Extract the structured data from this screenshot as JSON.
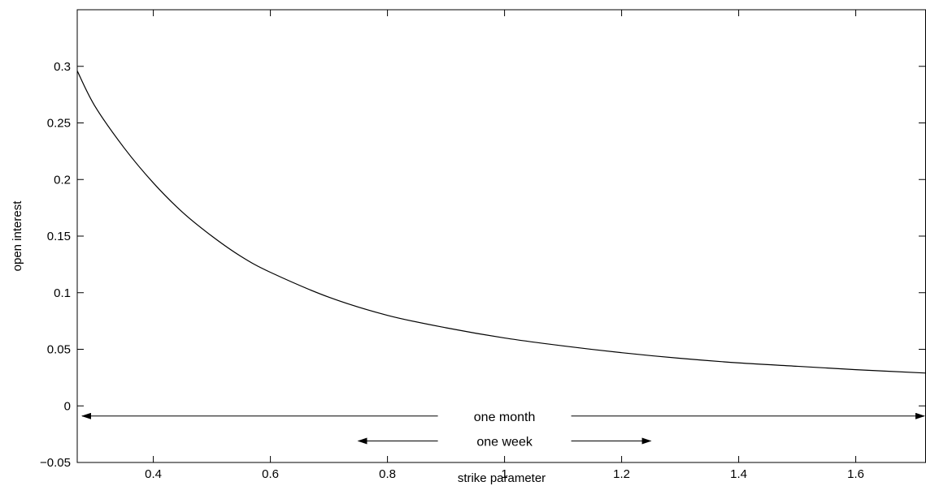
{
  "chart_data": {
    "type": "line",
    "xlabel": "strike parameter",
    "ylabel": "open interest",
    "xlim": [
      0.27,
      1.72
    ],
    "ylim": [
      -0.05,
      0.35
    ],
    "x_ticks": [
      0.4,
      0.6,
      0.8,
      1,
      1.2,
      1.4,
      1.6
    ],
    "x_tick_labels": [
      "0.4",
      "0.6",
      "0.8",
      "1",
      "1.2",
      "1.4",
      "1.6"
    ],
    "y_ticks": [
      -0.05,
      0,
      0.05,
      0.1,
      0.15,
      0.2,
      0.25,
      0.3
    ],
    "y_tick_labels": [
      "−0.05",
      "0",
      "0.05",
      "0.1",
      "0.15",
      "0.2",
      "0.25",
      "0.3"
    ],
    "grid": false,
    "series": [
      {
        "x": [
          0.27,
          0.3,
          0.35,
          0.4,
          0.45,
          0.5,
          0.55,
          0.6,
          0.7,
          0.8,
          0.9,
          1.0,
          1.1,
          1.2,
          1.3,
          1.4,
          1.5,
          1.6,
          1.72
        ],
        "y": [
          0.296,
          0.265,
          0.228,
          0.197,
          0.171,
          0.15,
          0.132,
          0.118,
          0.096,
          0.08,
          0.069,
          0.06,
          0.053,
          0.047,
          0.042,
          0.038,
          0.035,
          0.032,
          0.029
        ]
      }
    ],
    "annotations": [
      {
        "text": "one month",
        "y": -0.009,
        "x_from": 0.27,
        "x_to": 1.72,
        "arrows": "both"
      },
      {
        "text": "one week",
        "y": -0.031,
        "x_from": 0.75,
        "x_to": 1.25,
        "arrows": "both"
      }
    ]
  }
}
